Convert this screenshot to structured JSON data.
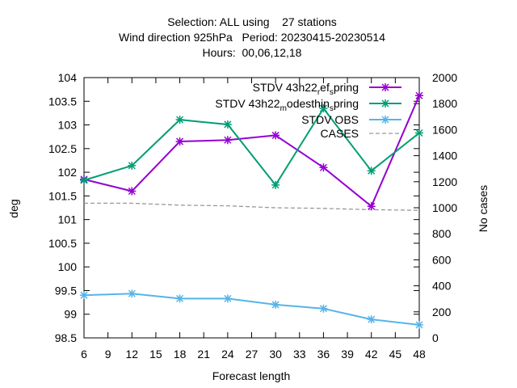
{
  "chart_data": {
    "type": "line",
    "title_lines": [
      "Selection: ALL using    27 stations",
      "Wind direction 925hPa   Period: 20230415-20230514",
      "Hours:  00,06,12,18"
    ],
    "xlabel": "Forecast length",
    "ylabel": "deg",
    "y2label": "No cases",
    "x": [
      6,
      12,
      18,
      24,
      30,
      36,
      42,
      48
    ],
    "xticks": [
      "6",
      "9",
      "12",
      "15",
      "18",
      "21",
      "24",
      "27",
      "30",
      "33",
      "36",
      "39",
      "42",
      "45",
      "48"
    ],
    "xlim": [
      6,
      48
    ],
    "yticks": [
      "98.5",
      "99",
      "99.5",
      "100",
      "100.5",
      "101",
      "101.5",
      "102",
      "102.5",
      "103",
      "103.5",
      "104"
    ],
    "ylim": [
      98.5,
      104
    ],
    "y2ticks": [
      "0",
      "200",
      "400",
      "600",
      "800",
      "1000",
      "1200",
      "1400",
      "1600",
      "1800",
      "2000"
    ],
    "y2lim": [
      0,
      2000
    ],
    "grid": false,
    "legend_position": "top-right",
    "series": [
      {
        "name": "STDV 43h22_ref_spring",
        "legend_main": "STDV 43h22",
        "legend_parts": [
          [
            "_",
            "r"
          ],
          [
            "",
            "ef"
          ],
          [
            "_",
            "s"
          ],
          [
            "",
            "pring"
          ]
        ],
        "color": "#9400d3",
        "marker": "x",
        "axis": "y",
        "values": [
          101.85,
          101.6,
          102.65,
          102.68,
          102.78,
          102.1,
          101.28,
          103.62
        ]
      },
      {
        "name": "STDV 43h22_modesthin_spring",
        "legend_main": "STDV 43h22",
        "legend_parts": [
          [
            "_",
            "m"
          ],
          [
            "",
            "odesthin"
          ],
          [
            "_",
            "s"
          ],
          [
            "",
            "pring"
          ]
        ],
        "color": "#009e73",
        "marker": "x",
        "axis": "y",
        "values": [
          101.83,
          102.14,
          103.11,
          103.01,
          101.73,
          103.35,
          102.03,
          102.83
        ]
      },
      {
        "name": "STDV OBS",
        "legend_main": "STDV OBS",
        "legend_parts": [],
        "color": "#56b4e9",
        "marker": "x",
        "axis": "y2",
        "values": [
          328,
          340,
          302,
          302,
          255,
          225,
          142,
          100
        ]
      },
      {
        "name": "CASES",
        "legend_main": "CASES",
        "legend_parts": [],
        "color": "#999999",
        "marker": "none",
        "dash": true,
        "axis": "y2",
        "values": [
          1035,
          1035,
          1020,
          1015,
          1000,
          995,
          985,
          980
        ]
      }
    ]
  }
}
